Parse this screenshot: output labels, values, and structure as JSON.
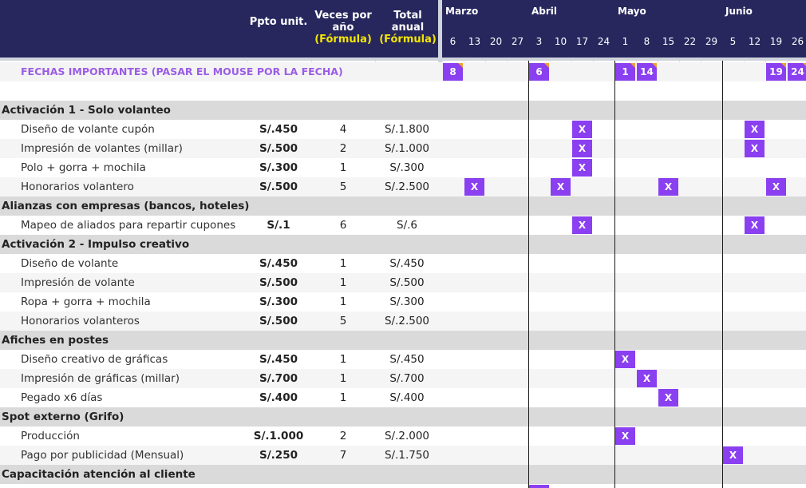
{
  "header": {
    "ppto_label": "Ppto unit.",
    "veces_label": "Veces por año",
    "veces_formula": "(Fórmula)",
    "total_label": "Total anual",
    "total_formula": "(Fórmula)"
  },
  "months": [
    {
      "name": "Marzo",
      "weeks": [
        "6",
        "13",
        "20",
        "27"
      ]
    },
    {
      "name": "Abril",
      "weeks": [
        "3",
        "10",
        "17",
        "24"
      ]
    },
    {
      "name": "Mayo",
      "weeks": [
        "1",
        "8",
        "15",
        "22",
        "29"
      ]
    },
    {
      "name": "Junio",
      "weeks": [
        "5",
        "12",
        "19",
        "26"
      ]
    }
  ],
  "important_dates": {
    "label": "FECHAS IMPORTANTES (PASAR EL MOUSE POR LA FECHA)",
    "badges": [
      {
        "col": 0,
        "text": "8"
      },
      {
        "col": 4,
        "text": "6"
      },
      {
        "col": 8,
        "text": "1"
      },
      {
        "col": 9,
        "text": "14"
      },
      {
        "col": 15,
        "text": "19"
      },
      {
        "col": 16,
        "text": "24"
      }
    ]
  },
  "mark_symbol": "X",
  "rows": [
    {
      "type": "cat",
      "title": "Activación 1 - Solo volanteo"
    },
    {
      "type": "item",
      "name": "Diseño de volante cupón",
      "ppto": "S/.450",
      "veces": "4",
      "total": "S/.1.800",
      "marks": [
        6,
        14
      ]
    },
    {
      "type": "item",
      "name": "Impresión de volantes (millar)",
      "ppto": "S/.500",
      "veces": "2",
      "total": "S/.1.000",
      "marks": [
        6,
        14
      ]
    },
    {
      "type": "item",
      "name": "Polo + gorra + mochila",
      "ppto": "S/.300",
      "veces": "1",
      "total": "S/.300",
      "marks": [
        6
      ]
    },
    {
      "type": "item",
      "name": "Honorarios volantero",
      "ppto": "S/.500",
      "veces": "5",
      "total": "S/.2.500",
      "marks": [
        1,
        5,
        10,
        15
      ]
    },
    {
      "type": "cat",
      "title": "Alianzas con empresas (bancos, hoteles)"
    },
    {
      "type": "item",
      "name": "Mapeo de aliados para repartir cupones",
      "ppto": "S/.1",
      "veces": "6",
      "total": "S/.6",
      "marks": [
        6,
        14
      ]
    },
    {
      "type": "cat",
      "title": "Activación 2 - Impulso creativo"
    },
    {
      "type": "item",
      "name": "Diseño de volante",
      "ppto": "S/.450",
      "veces": "1",
      "total": "S/.450",
      "marks": []
    },
    {
      "type": "item",
      "name": "Impresión de volante",
      "ppto": "S/.500",
      "veces": "1",
      "total": "S/.500",
      "marks": []
    },
    {
      "type": "item",
      "name": "Ropa + gorra + mochila",
      "ppto": "S/.300",
      "veces": "1",
      "total": "S/.300",
      "marks": []
    },
    {
      "type": "item",
      "name": "Honorarios volanteros",
      "ppto": "S/.500",
      "veces": "5",
      "total": "S/.2.500",
      "marks": []
    },
    {
      "type": "cat",
      "title": "Afiches en postes"
    },
    {
      "type": "item",
      "name": "Diseño creativo de gráficas",
      "ppto": "S/.450",
      "veces": "1",
      "total": "S/.450",
      "marks": [
        8
      ]
    },
    {
      "type": "item",
      "name": "Impresión de gráficas (millar)",
      "ppto": "S/.700",
      "veces": "1",
      "total": "S/.700",
      "marks": [
        9
      ]
    },
    {
      "type": "item",
      "name": "Pegado x6 días",
      "ppto": "S/.400",
      "veces": "1",
      "total": "S/.400",
      "marks": [
        10
      ]
    },
    {
      "type": "cat",
      "title": "Spot externo (Grifo)"
    },
    {
      "type": "item",
      "name": "Producción",
      "ppto": "S/.1.000",
      "veces": "2",
      "total": "S/.2.000",
      "marks": [
        8
      ]
    },
    {
      "type": "item",
      "name": "Pago por publicidad (Mensual)",
      "ppto": "S/.250",
      "veces": "7",
      "total": "S/.1.750",
      "marks": [
        13
      ]
    },
    {
      "type": "cat",
      "title": "Capacitación atención al cliente"
    }
  ]
}
